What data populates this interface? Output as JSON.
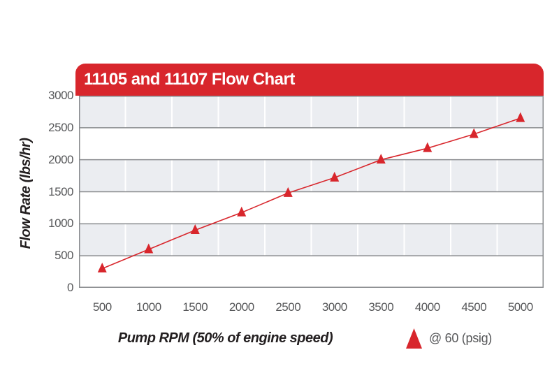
{
  "header": {
    "title": "11105 and 11107 Flow Chart"
  },
  "colors": {
    "red": "#d8262c",
    "band_gray": "#ebedf1",
    "band_white": "#ffffff",
    "grid_line": "#898b8e",
    "plot_border": "#898b8e",
    "column_separator": "#ffffff",
    "tick_text": "#57585a",
    "axis_title_text": "#231f20",
    "header_text": "#ffffff"
  },
  "chart_data": {
    "type": "line",
    "title": "11105 and 11107 Flow Chart",
    "categories": [
      500,
      1000,
      1500,
      2000,
      2500,
      3000,
      3500,
      4000,
      4500,
      5000
    ],
    "series": [
      {
        "name": "@ 60 (psig)",
        "marker": "triangle",
        "color": "#d8262c",
        "values": [
          300,
          600,
          900,
          1175,
          1480,
          1720,
          2000,
          2180,
          2400,
          2650
        ]
      }
    ],
    "xlabel": "Pump RPM (50% of engine speed)",
    "ylabel": "Flow Rate (lbs/hr)",
    "ylim": [
      0,
      3000
    ],
    "y_ticks": [
      0,
      500,
      1000,
      1500,
      2000,
      2500,
      3000
    ],
    "grid": "horizontal lines every 500; vertical white column separators; alternating gray/white bands",
    "legend_position": "bottom-right"
  },
  "legend": {
    "label": "@ 60 (psig)",
    "marker": "triangle-icon"
  }
}
